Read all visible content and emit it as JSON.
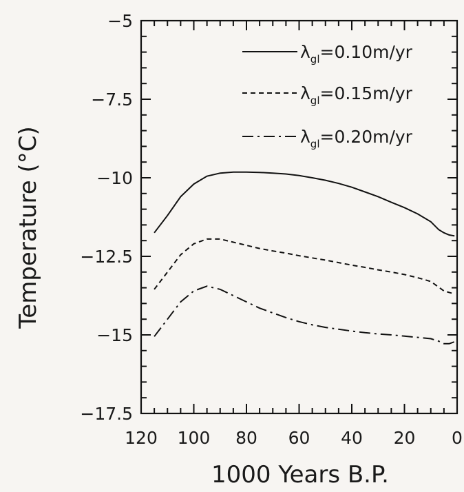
{
  "chart_data": {
    "type": "line",
    "title": "",
    "xlabel": "1000 Years B.P.",
    "ylabel": "Temperature (°C)",
    "xlim": [
      120,
      0
    ],
    "ylim": [
      -17.5,
      -5
    ],
    "x_ticks": [
      120,
      100,
      80,
      60,
      40,
      20,
      0
    ],
    "x_minor_step": 5,
    "y_ticks": [
      -5,
      -7.5,
      -10,
      -12.5,
      -15,
      -17.5
    ],
    "y_tick_labels": [
      "−5",
      "−7.5",
      "−10",
      "−12.5",
      "−15",
      "−17.5"
    ],
    "y_minor_step": 0.5,
    "grid": false,
    "legend_position": "top-right",
    "series": [
      {
        "label_main": "λ",
        "label_sub": "gl",
        "label_rest": "=0.10m/yr",
        "style": "solid",
        "x": [
          115,
          110,
          105,
          100,
          95,
          90,
          85,
          80,
          75,
          70,
          65,
          60,
          55,
          50,
          45,
          40,
          35,
          30,
          25,
          20,
          15,
          10,
          7,
          5,
          3,
          1
        ],
        "y": [
          -11.75,
          -11.2,
          -10.6,
          -10.2,
          -9.95,
          -9.85,
          -9.82,
          -9.82,
          -9.83,
          -9.85,
          -9.88,
          -9.93,
          -10.0,
          -10.08,
          -10.18,
          -10.3,
          -10.45,
          -10.6,
          -10.78,
          -10.95,
          -11.15,
          -11.4,
          -11.65,
          -11.75,
          -11.82,
          -11.85
        ]
      },
      {
        "label_main": "λ",
        "label_sub": "gl",
        "label_rest": "=0.15m/yr",
        "style": "dashed",
        "x": [
          115,
          110,
          105,
          100,
          95,
          90,
          85,
          80,
          75,
          70,
          65,
          60,
          55,
          50,
          45,
          40,
          35,
          30,
          25,
          20,
          15,
          10,
          7,
          5,
          3,
          1
        ],
        "y": [
          -13.55,
          -13.0,
          -12.45,
          -12.1,
          -11.95,
          -11.95,
          -12.05,
          -12.15,
          -12.25,
          -12.33,
          -12.4,
          -12.48,
          -12.55,
          -12.62,
          -12.7,
          -12.78,
          -12.85,
          -12.93,
          -13.0,
          -13.08,
          -13.18,
          -13.3,
          -13.48,
          -13.6,
          -13.65,
          -13.7
        ]
      },
      {
        "label_main": "λ",
        "label_sub": "gl",
        "label_rest": "=0.20m/yr",
        "style": "dashdot",
        "x": [
          115,
          110,
          105,
          100,
          95,
          90,
          85,
          80,
          75,
          70,
          65,
          60,
          55,
          50,
          45,
          40,
          35,
          30,
          25,
          20,
          15,
          10,
          7,
          5,
          3,
          1
        ],
        "y": [
          -15.05,
          -14.5,
          -13.95,
          -13.6,
          -13.45,
          -13.55,
          -13.75,
          -13.95,
          -14.15,
          -14.3,
          -14.45,
          -14.58,
          -14.68,
          -14.76,
          -14.82,
          -14.88,
          -14.93,
          -14.97,
          -15.0,
          -15.04,
          -15.08,
          -15.12,
          -15.2,
          -15.28,
          -15.28,
          -15.22
        ]
      }
    ]
  }
}
